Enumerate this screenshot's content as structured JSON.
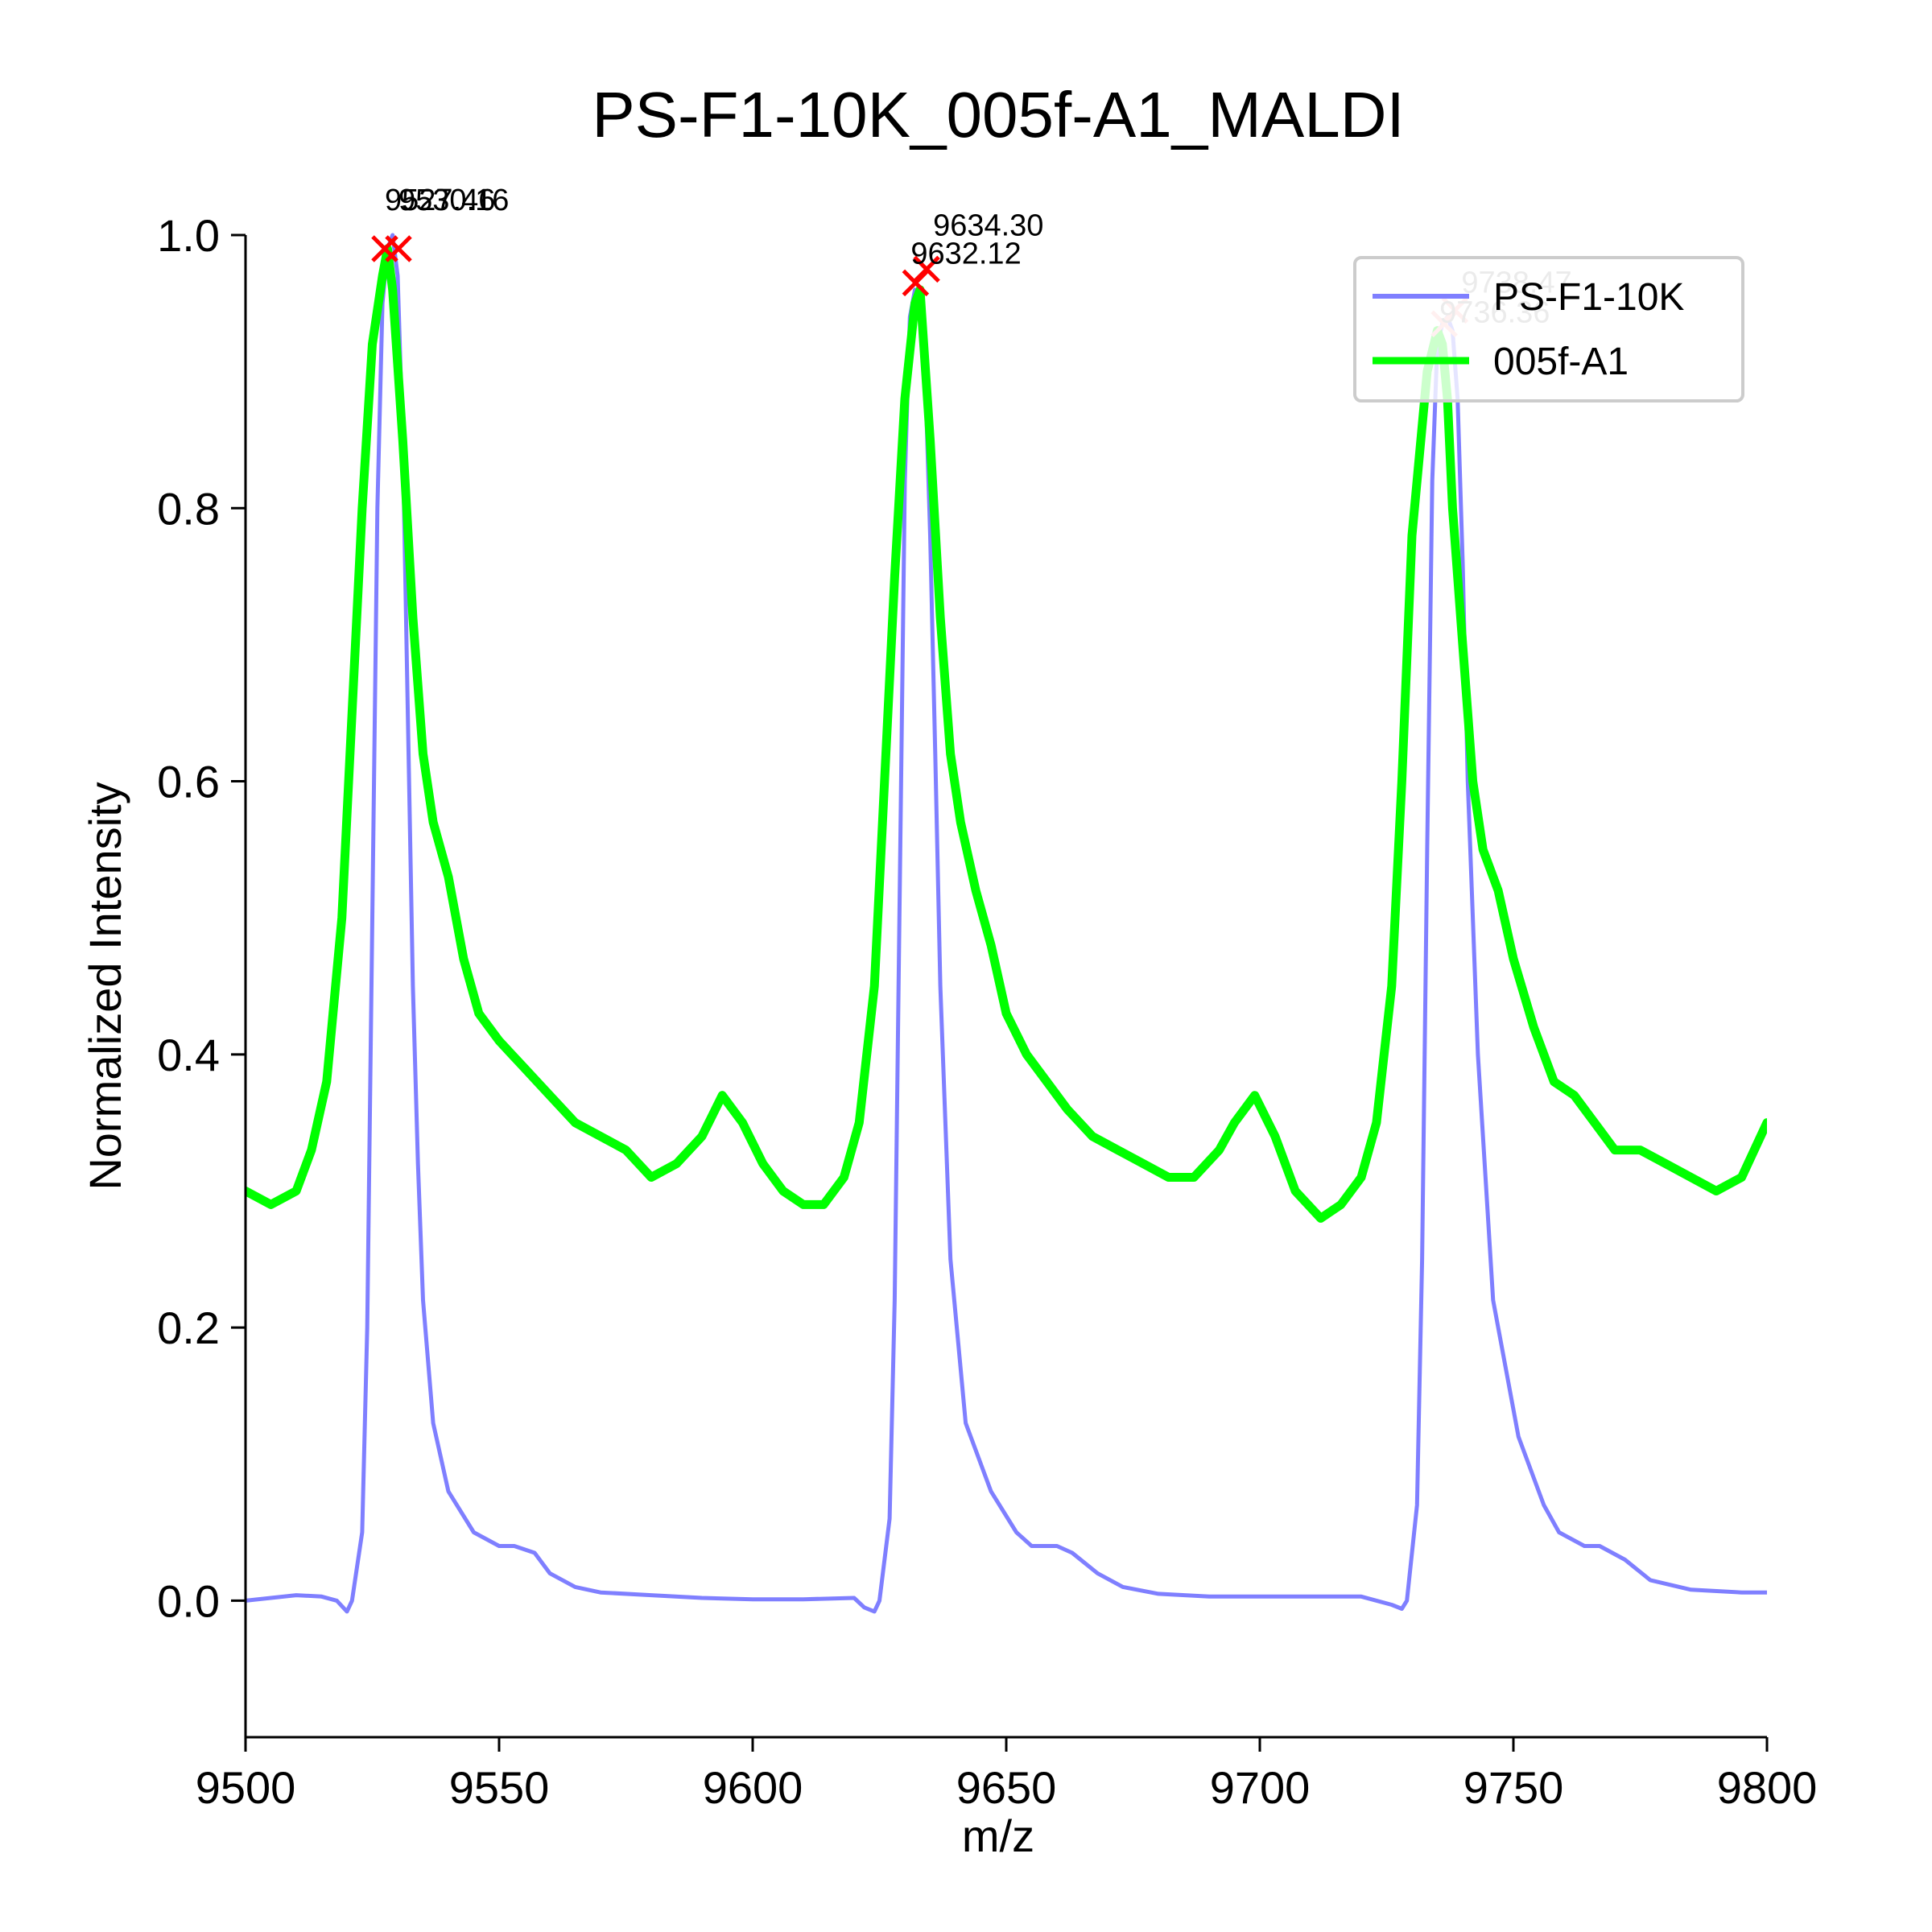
{
  "chart_data": {
    "type": "line",
    "title": "PS-F1-10K_005f-A1_MALDI",
    "xlabel": "m/z",
    "ylabel": "Normalized Intensity",
    "xlim": [
      9500,
      9800
    ],
    "ylim": [
      -0.1,
      1.0
    ],
    "xticks": [
      "9500",
      "9550",
      "9600",
      "9650",
      "9700",
      "9750",
      "9800"
    ],
    "yticks": [
      "0.0",
      "0.2",
      "0.4",
      "0.6",
      "0.8",
      "1.0"
    ],
    "grid": false,
    "legend_position": "top-right",
    "series": [
      {
        "name": "PS-F1-10K",
        "color": "#7f7fff",
        "x": [
          9500,
          9505,
          9510,
          9515,
          9518,
          9520,
          9521,
          9523,
          9524,
          9525,
          9526,
          9527,
          9528,
          9529,
          9530,
          9531,
          9532,
          9533,
          9534,
          9535,
          9537,
          9540,
          9545,
          9550,
          9553,
          9557,
          9560,
          9565,
          9570,
          9580,
          9590,
          9600,
          9610,
          9620,
          9622,
          9624,
          9625,
          9627,
          9628,
          9629,
          9630,
          9631,
          9632,
          9633,
          9634,
          9635,
          9636,
          9637,
          9639,
          9642,
          9647,
          9652,
          9655,
          9660,
          9663,
          9668,
          9673,
          9680,
          9690,
          9700,
          9710,
          9720,
          9726,
          9728,
          9729,
          9731,
          9732,
          9733,
          9734,
          9735,
          9736,
          9737,
          9738,
          9739,
          9740,
          9741,
          9743,
          9746,
          9751,
          9756,
          9759,
          9764,
          9767,
          9772,
          9777,
          9785,
          9795,
          9800
        ],
        "y": [
          0.0,
          0.002,
          0.004,
          0.003,
          0.0,
          -0.008,
          0.0,
          0.05,
          0.2,
          0.5,
          0.8,
          0.95,
          0.99,
          1.0,
          0.97,
          0.85,
          0.65,
          0.45,
          0.32,
          0.22,
          0.13,
          0.08,
          0.05,
          0.04,
          0.04,
          0.035,
          0.02,
          0.01,
          0.006,
          0.004,
          0.002,
          0.001,
          0.001,
          0.002,
          -0.005,
          -0.008,
          0.0,
          0.06,
          0.22,
          0.52,
          0.82,
          0.94,
          0.96,
          0.95,
          0.9,
          0.78,
          0.62,
          0.45,
          0.25,
          0.13,
          0.08,
          0.05,
          0.04,
          0.04,
          0.035,
          0.02,
          0.01,
          0.005,
          0.003,
          0.003,
          0.003,
          0.003,
          -0.003,
          -0.006,
          0.0,
          0.07,
          0.25,
          0.55,
          0.82,
          0.92,
          0.935,
          0.94,
          0.93,
          0.88,
          0.76,
          0.6,
          0.4,
          0.22,
          0.12,
          0.07,
          0.05,
          0.04,
          0.04,
          0.03,
          0.015,
          0.008,
          0.006,
          0.006
        ]
      },
      {
        "name": "005f-A1",
        "color": "#00ff00",
        "x": [
          9500,
          9505,
          9510,
          9513,
          9516,
          9519,
          9521,
          9523,
          9525,
          9527,
          9528,
          9529,
          9531,
          9533,
          9535,
          9537,
          9540,
          9543,
          9546,
          9550,
          9555,
          9560,
          9565,
          9570,
          9575,
          9580,
          9585,
          9590,
          9594,
          9598,
          9602,
          9606,
          9610,
          9614,
          9618,
          9621,
          9624,
          9626,
          9628,
          9630,
          9632,
          9633,
          9635,
          9637,
          9639,
          9641,
          9644,
          9647,
          9650,
          9654,
          9658,
          9662,
          9667,
          9672,
          9677,
          9682,
          9687,
          9692,
          9695,
          9699,
          9703,
          9707,
          9712,
          9716,
          9720,
          9723,
          9726,
          9728,
          9730,
          9733,
          9735,
          9736,
          9737,
          9738,
          9740,
          9742,
          9744,
          9747,
          9750,
          9754,
          9758,
          9762,
          9766,
          9770,
          9775,
          9780,
          9785,
          9790,
          9795,
          9800
        ],
        "y": [
          0.3,
          0.29,
          0.3,
          0.33,
          0.38,
          0.5,
          0.65,
          0.8,
          0.92,
          0.97,
          0.99,
          0.96,
          0.85,
          0.72,
          0.62,
          0.57,
          0.53,
          0.47,
          0.43,
          0.41,
          0.39,
          0.37,
          0.35,
          0.34,
          0.33,
          0.31,
          0.32,
          0.34,
          0.37,
          0.35,
          0.32,
          0.3,
          0.29,
          0.29,
          0.31,
          0.35,
          0.45,
          0.6,
          0.75,
          0.88,
          0.95,
          0.96,
          0.85,
          0.72,
          0.62,
          0.57,
          0.52,
          0.48,
          0.43,
          0.4,
          0.38,
          0.36,
          0.34,
          0.33,
          0.32,
          0.31,
          0.31,
          0.33,
          0.35,
          0.37,
          0.34,
          0.3,
          0.28,
          0.29,
          0.31,
          0.35,
          0.45,
          0.6,
          0.78,
          0.9,
          0.93,
          0.92,
          0.88,
          0.8,
          0.7,
          0.6,
          0.55,
          0.52,
          0.47,
          0.42,
          0.38,
          0.37,
          0.35,
          0.33,
          0.33,
          0.32,
          0.31,
          0.3,
          0.31,
          0.35
        ]
      }
    ],
    "peak_annotations": [
      {
        "series": "005f-A1",
        "x": 9527.46,
        "y": 0.99,
        "label": "9527.46"
      },
      {
        "series": "PS-F1-10K",
        "x": 9530.16,
        "y": 0.99,
        "label": "9530.16"
      },
      {
        "series": "PS-F1-10K",
        "x": 9634.3,
        "y": 0.975,
        "label": "9634.30"
      },
      {
        "series": "005f-A1",
        "x": 9632.12,
        "y": 0.965,
        "label": "9632.12"
      },
      {
        "series": "PS-F1-10K",
        "x": 9738.47,
        "y": 0.945,
        "label": "9738.47"
      },
      {
        "series": "005f-A1",
        "x": 9736.36,
        "y": 0.935,
        "label": "9736.36"
      }
    ],
    "marker_color": "#ff0000"
  }
}
